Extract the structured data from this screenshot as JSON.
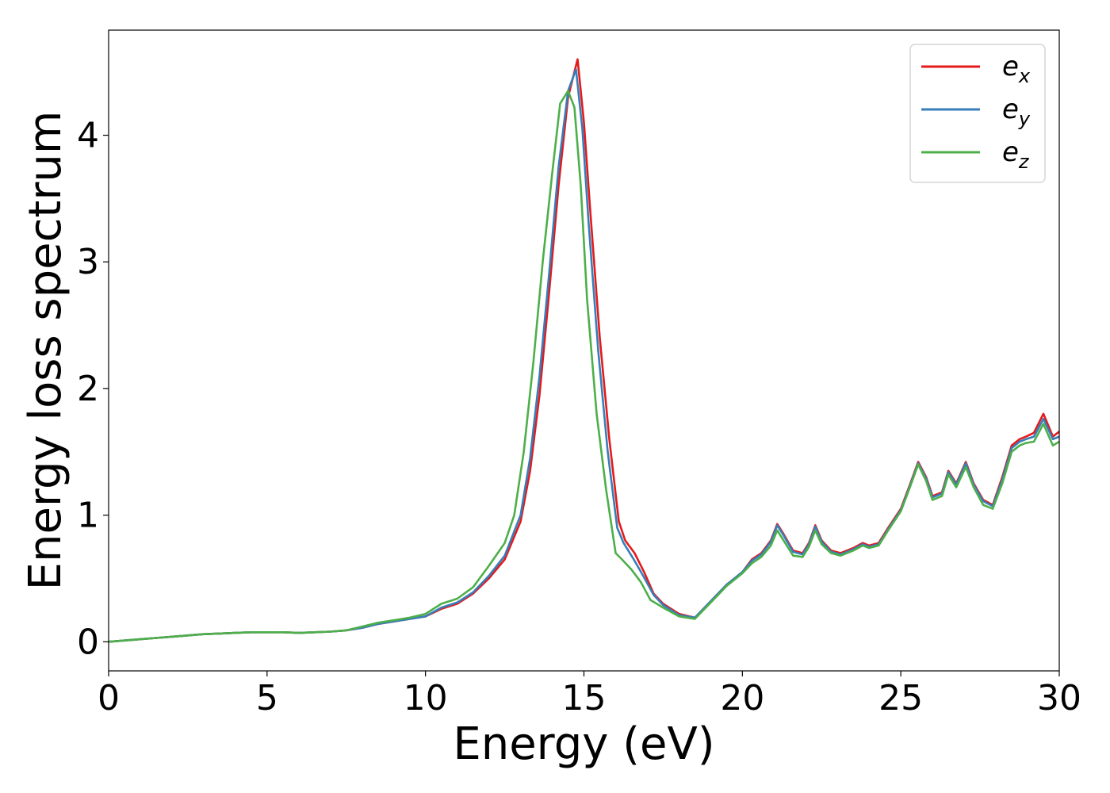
{
  "chart_data": {
    "type": "line",
    "title": "",
    "xlabel": "Energy (eV)",
    "ylabel": "Energy loss spectrum",
    "xlim": [
      0,
      30
    ],
    "ylim": [
      -0.23,
      4.83
    ],
    "xticks": [
      0,
      5,
      10,
      15,
      20,
      25,
      30
    ],
    "yticks": [
      0,
      1,
      2,
      3,
      4
    ],
    "grid": false,
    "legend_position": "top-right",
    "series": [
      {
        "name": "e_x",
        "label_base": "e",
        "label_sub": "x",
        "color": "#e41a1c",
        "x": [
          0,
          0.5,
          1,
          1.5,
          2,
          2.5,
          3,
          3.5,
          4,
          4.5,
          5,
          5.5,
          6,
          6.5,
          7,
          7.5,
          8,
          8.5,
          9,
          9.5,
          10,
          10.5,
          11,
          11.5,
          12,
          12.5,
          13,
          13.3,
          13.6,
          13.9,
          14.2,
          14.5,
          14.8,
          15.0,
          15.2,
          15.5,
          15.8,
          16.1,
          16.3,
          16.6,
          16.9,
          17.2,
          17.5,
          18.0,
          18.5,
          19.0,
          19.5,
          20.0,
          20.3,
          20.6,
          20.9,
          21.1,
          21.3,
          21.6,
          21.9,
          22.1,
          22.3,
          22.5,
          22.8,
          23.1,
          23.5,
          23.8,
          24.0,
          24.3,
          24.6,
          25.0,
          25.3,
          25.55,
          25.8,
          26.0,
          26.3,
          26.5,
          26.75,
          27.05,
          27.3,
          27.6,
          27.9,
          28.2,
          28.5,
          28.75,
          28.95,
          29.2,
          29.5,
          29.8,
          30.0
        ],
        "y": [
          0,
          0.01,
          0.02,
          0.03,
          0.04,
          0.05,
          0.06,
          0.065,
          0.07,
          0.075,
          0.075,
          0.075,
          0.07,
          0.075,
          0.08,
          0.09,
          0.11,
          0.14,
          0.16,
          0.18,
          0.2,
          0.26,
          0.3,
          0.38,
          0.5,
          0.65,
          0.95,
          1.35,
          1.95,
          2.75,
          3.6,
          4.3,
          4.6,
          4.1,
          3.4,
          2.4,
          1.6,
          0.95,
          0.8,
          0.7,
          0.55,
          0.38,
          0.3,
          0.22,
          0.19,
          0.32,
          0.45,
          0.55,
          0.65,
          0.7,
          0.8,
          0.93,
          0.85,
          0.72,
          0.7,
          0.78,
          0.92,
          0.8,
          0.72,
          0.7,
          0.74,
          0.78,
          0.76,
          0.78,
          0.9,
          1.05,
          1.25,
          1.42,
          1.3,
          1.15,
          1.18,
          1.35,
          1.25,
          1.42,
          1.25,
          1.12,
          1.08,
          1.3,
          1.55,
          1.6,
          1.62,
          1.65,
          1.8,
          1.62,
          1.66
        ]
      },
      {
        "name": "e_y",
        "label_base": "e",
        "label_sub": "y",
        "color": "#377eb8",
        "x": [
          0,
          0.5,
          1,
          1.5,
          2,
          2.5,
          3,
          3.5,
          4,
          4.5,
          5,
          5.5,
          6,
          6.5,
          7,
          7.5,
          8,
          8.5,
          9,
          9.5,
          10,
          10.5,
          11,
          11.5,
          12,
          12.5,
          13,
          13.3,
          13.6,
          13.9,
          14.2,
          14.5,
          14.75,
          14.95,
          15.15,
          15.45,
          15.75,
          16.05,
          16.25,
          16.55,
          16.85,
          17.2,
          17.5,
          18.0,
          18.5,
          19.0,
          19.5,
          20.0,
          20.3,
          20.6,
          20.9,
          21.1,
          21.3,
          21.6,
          21.9,
          22.1,
          22.3,
          22.5,
          22.8,
          23.1,
          23.5,
          23.8,
          24.0,
          24.3,
          24.6,
          25.0,
          25.3,
          25.55,
          25.8,
          26.0,
          26.3,
          26.5,
          26.75,
          27.05,
          27.3,
          27.6,
          27.9,
          28.2,
          28.5,
          28.75,
          28.95,
          29.2,
          29.5,
          29.8,
          30.0
        ],
        "y": [
          0,
          0.01,
          0.02,
          0.03,
          0.04,
          0.05,
          0.06,
          0.065,
          0.07,
          0.075,
          0.075,
          0.075,
          0.07,
          0.075,
          0.08,
          0.09,
          0.11,
          0.14,
          0.16,
          0.18,
          0.2,
          0.27,
          0.31,
          0.39,
          0.52,
          0.68,
          1.0,
          1.45,
          2.1,
          2.9,
          3.75,
          4.35,
          4.52,
          4.05,
          3.3,
          2.3,
          1.5,
          0.9,
          0.78,
          0.66,
          0.53,
          0.37,
          0.29,
          0.21,
          0.19,
          0.32,
          0.45,
          0.55,
          0.64,
          0.69,
          0.79,
          0.92,
          0.84,
          0.71,
          0.69,
          0.77,
          0.91,
          0.79,
          0.71,
          0.69,
          0.73,
          0.77,
          0.75,
          0.77,
          0.89,
          1.04,
          1.24,
          1.41,
          1.29,
          1.14,
          1.17,
          1.34,
          1.24,
          1.41,
          1.24,
          1.11,
          1.07,
          1.28,
          1.53,
          1.58,
          1.6,
          1.62,
          1.76,
          1.6,
          1.62
        ]
      },
      {
        "name": "e_z",
        "label_base": "e",
        "label_sub": "z",
        "color": "#4daf4a",
        "x": [
          0,
          0.5,
          1,
          1.5,
          2,
          2.5,
          3,
          3.5,
          4,
          4.5,
          5,
          5.5,
          6,
          6.5,
          7,
          7.5,
          8,
          8.5,
          9,
          9.5,
          10,
          10.5,
          11,
          11.5,
          12,
          12.5,
          12.8,
          13.1,
          13.4,
          13.7,
          14.0,
          14.25,
          14.5,
          14.7,
          14.9,
          15.1,
          15.4,
          15.7,
          16.0,
          16.2,
          16.5,
          16.8,
          17.1,
          17.5,
          18.0,
          18.5,
          19.0,
          19.5,
          20.0,
          20.3,
          20.6,
          20.9,
          21.1,
          21.3,
          21.6,
          21.9,
          22.1,
          22.3,
          22.5,
          22.8,
          23.1,
          23.5,
          23.8,
          24.0,
          24.3,
          24.6,
          25.0,
          25.3,
          25.55,
          25.8,
          26.0,
          26.3,
          26.5,
          26.75,
          27.05,
          27.3,
          27.6,
          27.9,
          28.2,
          28.5,
          28.75,
          28.95,
          29.2,
          29.5,
          29.8,
          30.0
        ],
        "y": [
          0,
          0.01,
          0.02,
          0.03,
          0.04,
          0.05,
          0.06,
          0.065,
          0.07,
          0.075,
          0.075,
          0.075,
          0.07,
          0.075,
          0.08,
          0.09,
          0.12,
          0.15,
          0.17,
          0.19,
          0.22,
          0.3,
          0.34,
          0.43,
          0.6,
          0.78,
          1.0,
          1.5,
          2.2,
          3.0,
          3.7,
          4.25,
          4.35,
          4.22,
          3.6,
          2.7,
          1.8,
          1.2,
          0.7,
          0.65,
          0.57,
          0.47,
          0.33,
          0.27,
          0.2,
          0.18,
          0.31,
          0.44,
          0.54,
          0.62,
          0.67,
          0.76,
          0.88,
          0.8,
          0.68,
          0.67,
          0.75,
          0.88,
          0.77,
          0.7,
          0.68,
          0.72,
          0.76,
          0.74,
          0.76,
          0.88,
          1.03,
          1.23,
          1.4,
          1.27,
          1.12,
          1.15,
          1.32,
          1.22,
          1.38,
          1.22,
          1.08,
          1.05,
          1.25,
          1.5,
          1.55,
          1.57,
          1.58,
          1.72,
          1.55,
          1.58
        ]
      }
    ]
  }
}
